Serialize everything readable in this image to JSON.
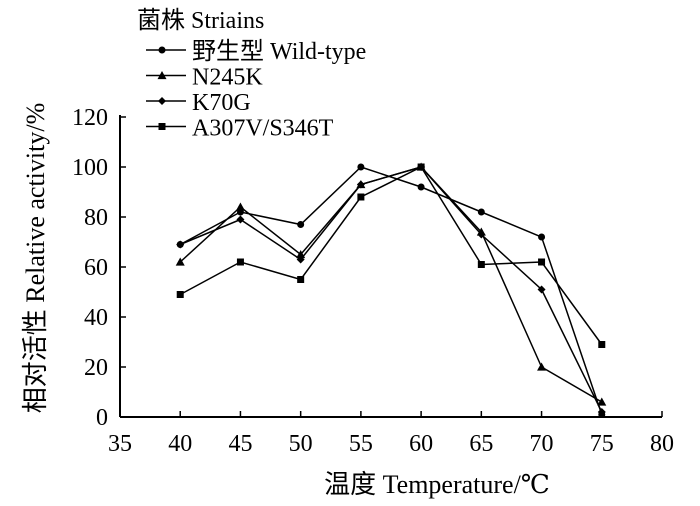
{
  "chart_data": {
    "type": "line",
    "xlabel": "温度 Temperature/℃",
    "ylabel": "相对活性 Relative activity/%",
    "xlim": [
      35,
      80
    ],
    "ylim": [
      0,
      120
    ],
    "xticks": [
      35,
      40,
      45,
      50,
      55,
      60,
      65,
      70,
      75,
      80
    ],
    "yticks": [
      0,
      20,
      40,
      60,
      80,
      100,
      120
    ],
    "grid": false,
    "legend": {
      "title": "菌株 Striains",
      "placement": "top-left"
    },
    "x": [
      40,
      45,
      50,
      55,
      60,
      65,
      70,
      75
    ],
    "series": [
      {
        "name": "野生型 Wild-type",
        "marker": "circle",
        "values": [
          69,
          82,
          77,
          100,
          92,
          82,
          72,
          1
        ]
      },
      {
        "name": "N245K",
        "marker": "triangle",
        "values": [
          62,
          84,
          65,
          93,
          100,
          74,
          20,
          6
        ]
      },
      {
        "name": "K70G",
        "marker": "diamond",
        "values": [
          69,
          79,
          63,
          93,
          100,
          73,
          51,
          2
        ]
      },
      {
        "name": "A307V/S346T",
        "marker": "square",
        "values": [
          49,
          62,
          55,
          88,
          100,
          61,
          62,
          29
        ]
      }
    ],
    "color": "#000000"
  }
}
